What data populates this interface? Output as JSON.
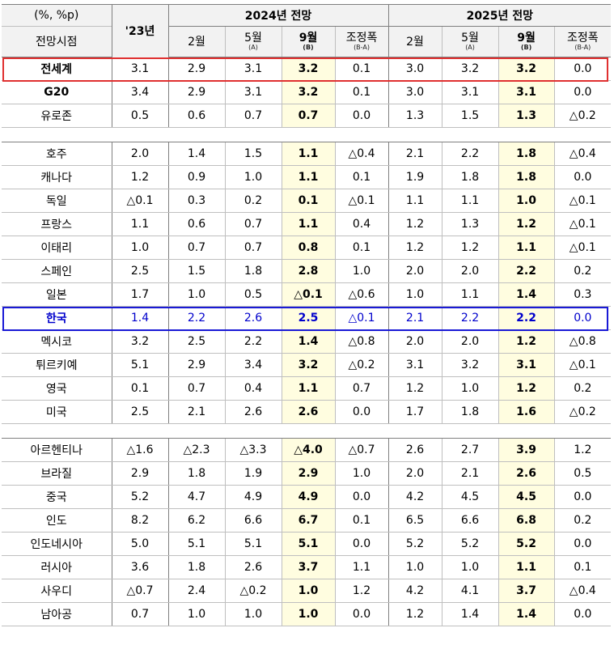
{
  "header": {
    "unit": "(%, %p)",
    "row_label": "전망시점",
    "year_col": "'23년",
    "group_2024": "2024년  전망",
    "group_2025": "2025년  전망",
    "sub": [
      {
        "main": "2월",
        "note": ""
      },
      {
        "main": "5월",
        "note": "(A)"
      },
      {
        "main": "9월",
        "note": "(B)"
      },
      {
        "main": "조정폭",
        "note": "(B-A)"
      },
      {
        "main": "2월",
        "note": ""
      },
      {
        "main": "5월",
        "note": "(A)"
      },
      {
        "main": "9월",
        "note": "(B)"
      },
      {
        "main": "조정폭",
        "note": "(B-A)"
      }
    ]
  },
  "groups": [
    {
      "rows": [
        {
          "name": "전세계",
          "values": [
            "3.1",
            "2.9",
            "3.1",
            "3.2",
            "0.1",
            "3.0",
            "3.2",
            "3.2",
            "0.0"
          ],
          "bold_name": true
        },
        {
          "name": "G20",
          "values": [
            "3.4",
            "2.9",
            "3.1",
            "3.2",
            "0.1",
            "3.0",
            "3.1",
            "3.1",
            "0.0"
          ],
          "bold_name": true
        },
        {
          "name": "유로존",
          "values": [
            "0.5",
            "0.6",
            "0.7",
            "0.7",
            "0.0",
            "1.3",
            "1.5",
            "1.3",
            "△0.2"
          ],
          "bold_name": false
        }
      ]
    },
    {
      "rows": [
        {
          "name": "호주",
          "values": [
            "2.0",
            "1.4",
            "1.5",
            "1.1",
            "△0.4",
            "2.1",
            "2.2",
            "1.8",
            "△0.4"
          ],
          "bold_name": false
        },
        {
          "name": "캐나다",
          "values": [
            "1.2",
            "0.9",
            "1.0",
            "1.1",
            "0.1",
            "1.9",
            "1.8",
            "1.8",
            "0.0"
          ],
          "bold_name": false
        },
        {
          "name": "독일",
          "values": [
            "△0.1",
            "0.3",
            "0.2",
            "0.1",
            "△0.1",
            "1.1",
            "1.1",
            "1.0",
            "△0.1"
          ],
          "bold_name": false
        },
        {
          "name": "프랑스",
          "values": [
            "1.1",
            "0.6",
            "0.7",
            "1.1",
            "0.4",
            "1.2",
            "1.3",
            "1.2",
            "△0.1"
          ],
          "bold_name": false
        },
        {
          "name": "이태리",
          "values": [
            "1.0",
            "0.7",
            "0.7",
            "0.8",
            "0.1",
            "1.2",
            "1.2",
            "1.1",
            "△0.1"
          ],
          "bold_name": false
        },
        {
          "name": "스페인",
          "values": [
            "2.5",
            "1.5",
            "1.8",
            "2.8",
            "1.0",
            "2.0",
            "2.0",
            "2.2",
            "0.2"
          ],
          "bold_name": false
        },
        {
          "name": "일본",
          "values": [
            "1.7",
            "1.0",
            "0.5",
            "△0.1",
            "△0.6",
            "1.0",
            "1.1",
            "1.4",
            "0.3"
          ],
          "bold_name": false
        },
        {
          "name": "한국",
          "values": [
            "1.4",
            "2.2",
            "2.6",
            "2.5",
            "△0.1",
            "2.1",
            "2.2",
            "2.2",
            "0.0"
          ],
          "bold_name": true
        },
        {
          "name": "멕시코",
          "values": [
            "3.2",
            "2.5",
            "2.2",
            "1.4",
            "△0.8",
            "2.0",
            "2.0",
            "1.2",
            "△0.8"
          ],
          "bold_name": false
        },
        {
          "name": "튀르키예",
          "values": [
            "5.1",
            "2.9",
            "3.4",
            "3.2",
            "△0.2",
            "3.1",
            "3.2",
            "3.1",
            "△0.1"
          ],
          "bold_name": false
        },
        {
          "name": "영국",
          "values": [
            "0.1",
            "0.7",
            "0.4",
            "1.1",
            "0.7",
            "1.2",
            "1.0",
            "1.2",
            "0.2"
          ],
          "bold_name": false
        },
        {
          "name": "미국",
          "values": [
            "2.5",
            "2.1",
            "2.6",
            "2.6",
            "0.0",
            "1.7",
            "1.8",
            "1.6",
            "△0.2"
          ],
          "bold_name": false
        }
      ]
    },
    {
      "rows": [
        {
          "name": "아르헨티나",
          "values": [
            "△1.6",
            "△2.3",
            "△3.3",
            "△4.0",
            "△0.7",
            "2.6",
            "2.7",
            "3.9",
            "1.2"
          ],
          "bold_name": false
        },
        {
          "name": "브라질",
          "values": [
            "2.9",
            "1.8",
            "1.9",
            "2.9",
            "1.0",
            "2.0",
            "2.1",
            "2.6",
            "0.5"
          ],
          "bold_name": false
        },
        {
          "name": "중국",
          "values": [
            "5.2",
            "4.7",
            "4.9",
            "4.9",
            "0.0",
            "4.2",
            "4.5",
            "4.5",
            "0.0"
          ],
          "bold_name": false
        },
        {
          "name": "인도",
          "values": [
            "8.2",
            "6.2",
            "6.6",
            "6.7",
            "0.1",
            "6.5",
            "6.6",
            "6.8",
            "0.2"
          ],
          "bold_name": false
        },
        {
          "name": "인도네시아",
          "values": [
            "5.0",
            "5.1",
            "5.1",
            "5.1",
            "0.0",
            "5.2",
            "5.2",
            "5.2",
            "0.0"
          ],
          "bold_name": false
        },
        {
          "name": "러시아",
          "values": [
            "3.6",
            "1.8",
            "2.6",
            "3.7",
            "1.1",
            "1.0",
            "1.0",
            "1.1",
            "0.1"
          ],
          "bold_name": false
        },
        {
          "name": "사우디",
          "values": [
            "△0.7",
            "2.4",
            "△0.2",
            "1.0",
            "1.2",
            "4.2",
            "4.1",
            "3.7",
            "△0.4"
          ],
          "bold_name": false
        },
        {
          "name": "남아공",
          "values": [
            "0.7",
            "1.0",
            "1.0",
            "1.0",
            "0.0",
            "1.2",
            "1.4",
            "1.4",
            "0.0"
          ],
          "bold_name": false
        }
      ]
    }
  ],
  "highlights": {
    "row_box_colors": {
      "전세계": "#e03030",
      "한국": "#1a1ad6"
    },
    "sept_column_fill": "#fffde0",
    "header_fill": "#f2f2f2"
  }
}
